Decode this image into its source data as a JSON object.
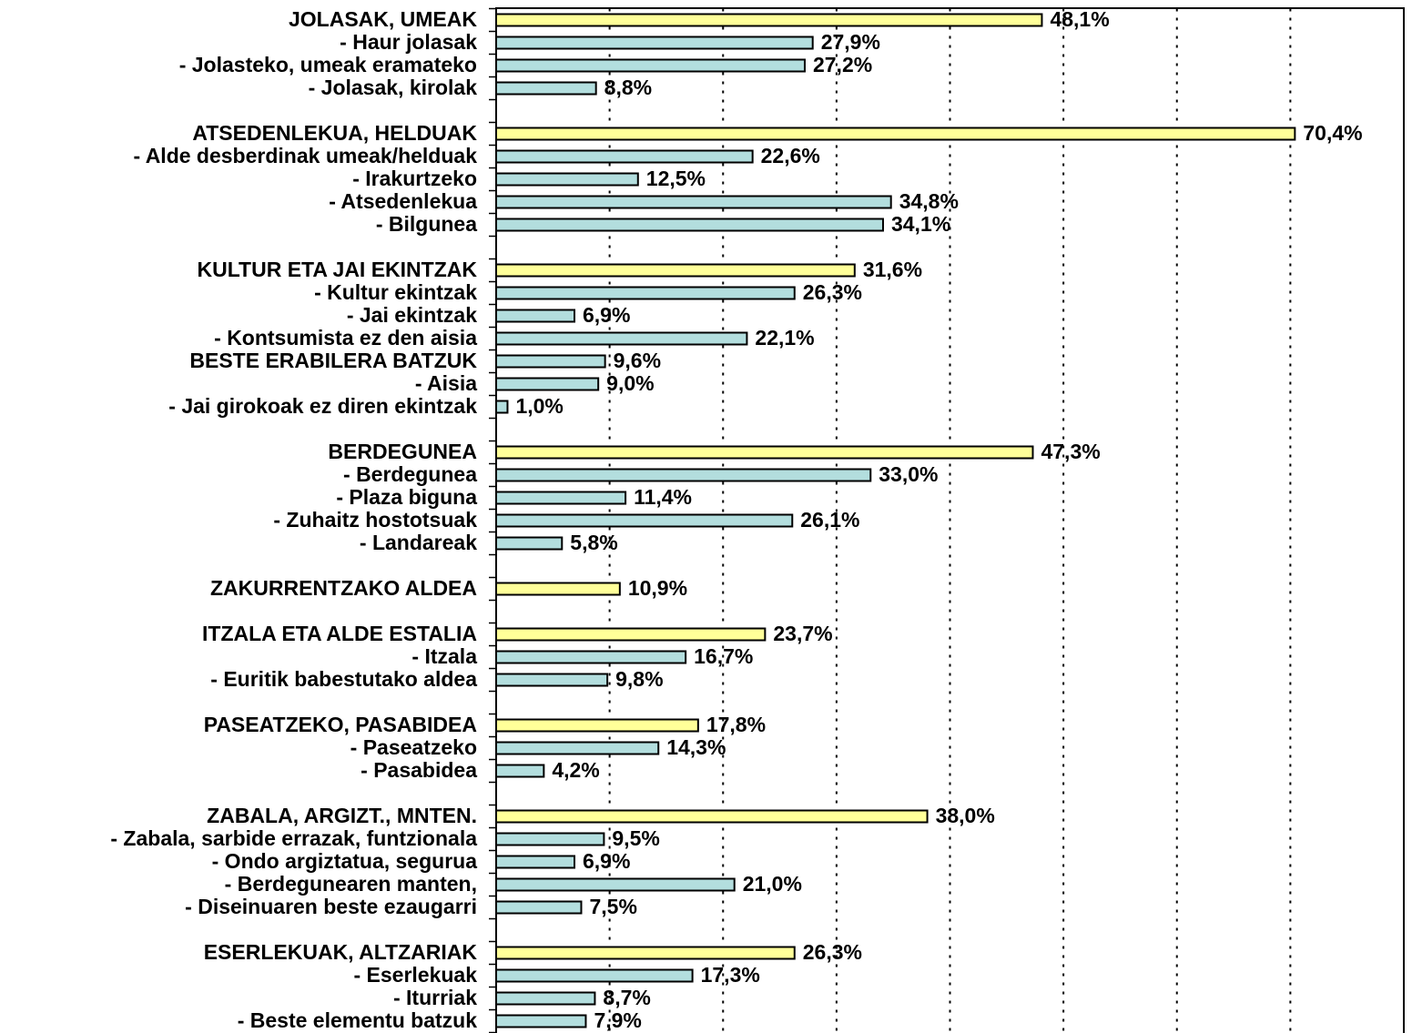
{
  "chart_data": {
    "type": "bar",
    "orientation": "horizontal",
    "categories": [
      "JOLASAK, UMEAK",
      "- Haur jolasak",
      "- Jolasteko, umeak eramateko",
      "- Jolasak, kirolak",
      null,
      "ATSEDENLEKUA, HELDUAK",
      "- Alde desberdinak umeak/helduak",
      "- Irakurtzeko",
      "- Atsedenlekua",
      "- Bilgunea",
      null,
      "KULTUR ETA JAI EKINTZAK",
      "- Kultur ekintzak",
      "- Jai ekintzak",
      "- Kontsumista ez den aisia",
      "BESTE ERABILERA BATZUK",
      "- Aisia",
      "- Jai girokoak ez diren ekintzak",
      null,
      "BERDEGUNEA",
      "- Berdegunea",
      "- Plaza biguna",
      "- Zuhaitz hostotsuak",
      "- Landareak",
      null,
      "ZAKURRENTZAKO ALDEA",
      null,
      "ITZALA ETA ALDE ESTALIA",
      "- Itzala",
      "- Euritik babestutako aldea",
      null,
      "PASEATZEKO, PASABIDEA",
      "- Paseatzeko",
      "- Pasabidea",
      null,
      "ZABALA, ARGIZT., MNTEN.",
      "- Zabala, sarbide errazak, funtzionala",
      "- Ondo argiztatua, segurua",
      "- Berdegunearen manten,",
      "- Diseinuaren beste ezaugarri",
      null,
      "ESERLEKUAK, ALTZARIAK",
      "- Eserlekuak",
      "- Iturriak",
      "- Beste elementu batzuk"
    ],
    "values": [
      48.1,
      27.9,
      27.2,
      8.8,
      null,
      70.4,
      22.6,
      12.5,
      34.8,
      34.1,
      null,
      31.6,
      26.3,
      6.9,
      22.1,
      9.6,
      9.0,
      1.0,
      null,
      47.3,
      33.0,
      11.4,
      26.1,
      5.8,
      null,
      10.9,
      null,
      23.7,
      16.7,
      9.8,
      null,
      17.8,
      14.3,
      4.2,
      null,
      38.0,
      9.5,
      6.9,
      21.0,
      7.5,
      null,
      26.3,
      17.3,
      8.7,
      7.9
    ],
    "value_labels": [
      "48,1%",
      "27,9%",
      "27,2%",
      "8,8%",
      null,
      "70,4%",
      "22,6%",
      "12,5%",
      "34,8%",
      "34,1%",
      null,
      "31,6%",
      "26,3%",
      "6,9%",
      "22,1%",
      "9,6%",
      "9,0%",
      "1,0%",
      null,
      "47,3%",
      "33,0%",
      "11,4%",
      "26,1%",
      "5,8%",
      null,
      "10,9%",
      null,
      "23,7%",
      "16,7%",
      "9,8%",
      null,
      "17,8%",
      "14,3%",
      "4,2%",
      null,
      "38,0%",
      "9,5%",
      "6,9%",
      "21,0%",
      "7,5%",
      null,
      "26,3%",
      "17,3%",
      "8,7%",
      "7,9%"
    ],
    "colors": [
      "#ffff99",
      "#b3dede",
      "#b3dede",
      "#b3dede",
      null,
      "#ffff99",
      "#b3dede",
      "#b3dede",
      "#b3dede",
      "#b3dede",
      null,
      "#ffff99",
      "#b3dede",
      "#b3dede",
      "#b3dede",
      "#b3dede",
      "#b3dede",
      "#b3dede",
      null,
      "#ffff99",
      "#b3dede",
      "#b3dede",
      "#b3dede",
      "#b3dede",
      null,
      "#ffff99",
      null,
      "#ffff99",
      "#b3dede",
      "#b3dede",
      null,
      "#ffff99",
      "#b3dede",
      "#b3dede",
      null,
      "#ffff99",
      "#b3dede",
      "#b3dede",
      "#b3dede",
      "#b3dede",
      null,
      "#ffff99",
      "#b3dede",
      "#b3dede",
      "#b3dede"
    ],
    "xlim": [
      0,
      80
    ],
    "xticks": [
      10,
      20,
      30,
      40,
      50,
      60,
      70
    ],
    "grid": true
  }
}
